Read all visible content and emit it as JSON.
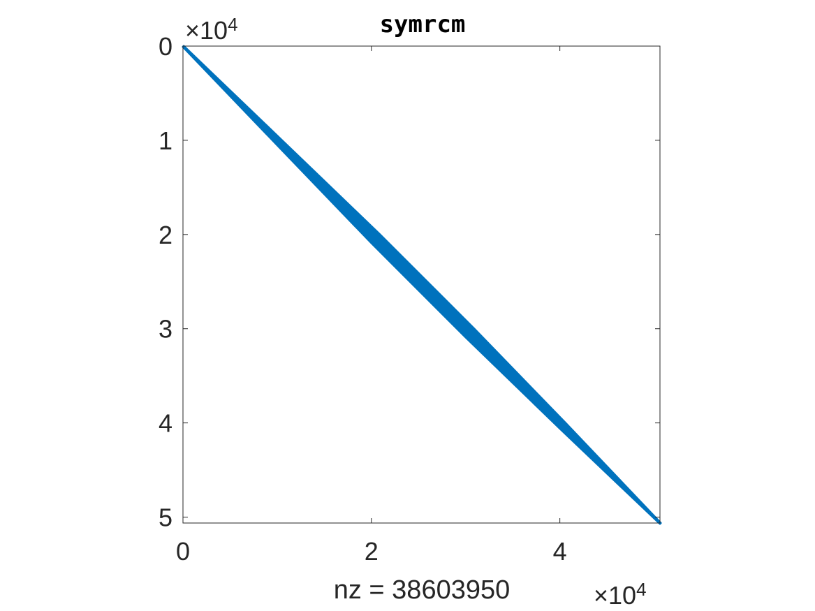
{
  "chart_data": {
    "type": "scatter",
    "title": "symrcm",
    "xlabel": "nz = 38603950",
    "ylabel": "",
    "xlim": [
      0,
      50625
    ],
    "ylim": [
      0,
      50625
    ],
    "y_reversed": true,
    "x_ticks": [
      0,
      2,
      4
    ],
    "y_ticks": [
      0,
      1,
      2,
      3,
      4,
      5
    ],
    "x_exponent": "×10",
    "x_exponent_power": "4",
    "y_exponent": "×10",
    "y_exponent_power": "4",
    "grid": false,
    "marker_color": "#0072BD",
    "band": {
      "description_matrix_size": 50625,
      "center": [
        [
          0,
          0
        ],
        [
          50625,
          50625
        ]
      ],
      "half_width_rows": [
        [
          0,
          80
        ],
        [
          10000,
          500
        ],
        [
          20000,
          900
        ],
        [
          30000,
          900
        ],
        [
          40000,
          600
        ],
        [
          50625,
          80
        ]
      ]
    }
  }
}
